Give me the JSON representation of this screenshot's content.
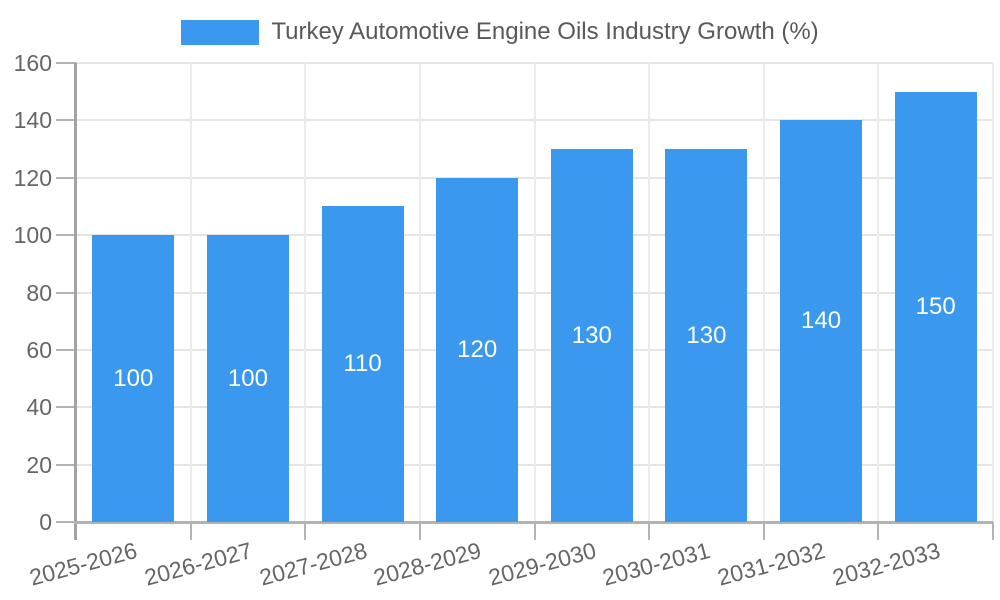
{
  "chart_data": {
    "type": "bar",
    "title": "Turkey Automotive Engine Oils Industry Growth (%)",
    "categories": [
      "2025-2026",
      "2026-2027",
      "2027-2028",
      "2028-2029",
      "2029-2030",
      "2030-2031",
      "2031-2032",
      "2032-2033"
    ],
    "values": [
      100,
      100,
      110,
      120,
      130,
      130,
      140,
      150
    ],
    "xlabel": "",
    "ylabel": "",
    "ylim": [
      0,
      160
    ],
    "ytick_step": 20,
    "yticks": [
      0,
      20,
      40,
      60,
      80,
      100,
      120,
      140,
      160
    ],
    "grid": true,
    "legend_position": "top",
    "bar_color": "#3A99EE",
    "bar_label_color": "#ffffff",
    "axis_text_color": "#666666",
    "title_color": "#595959"
  }
}
